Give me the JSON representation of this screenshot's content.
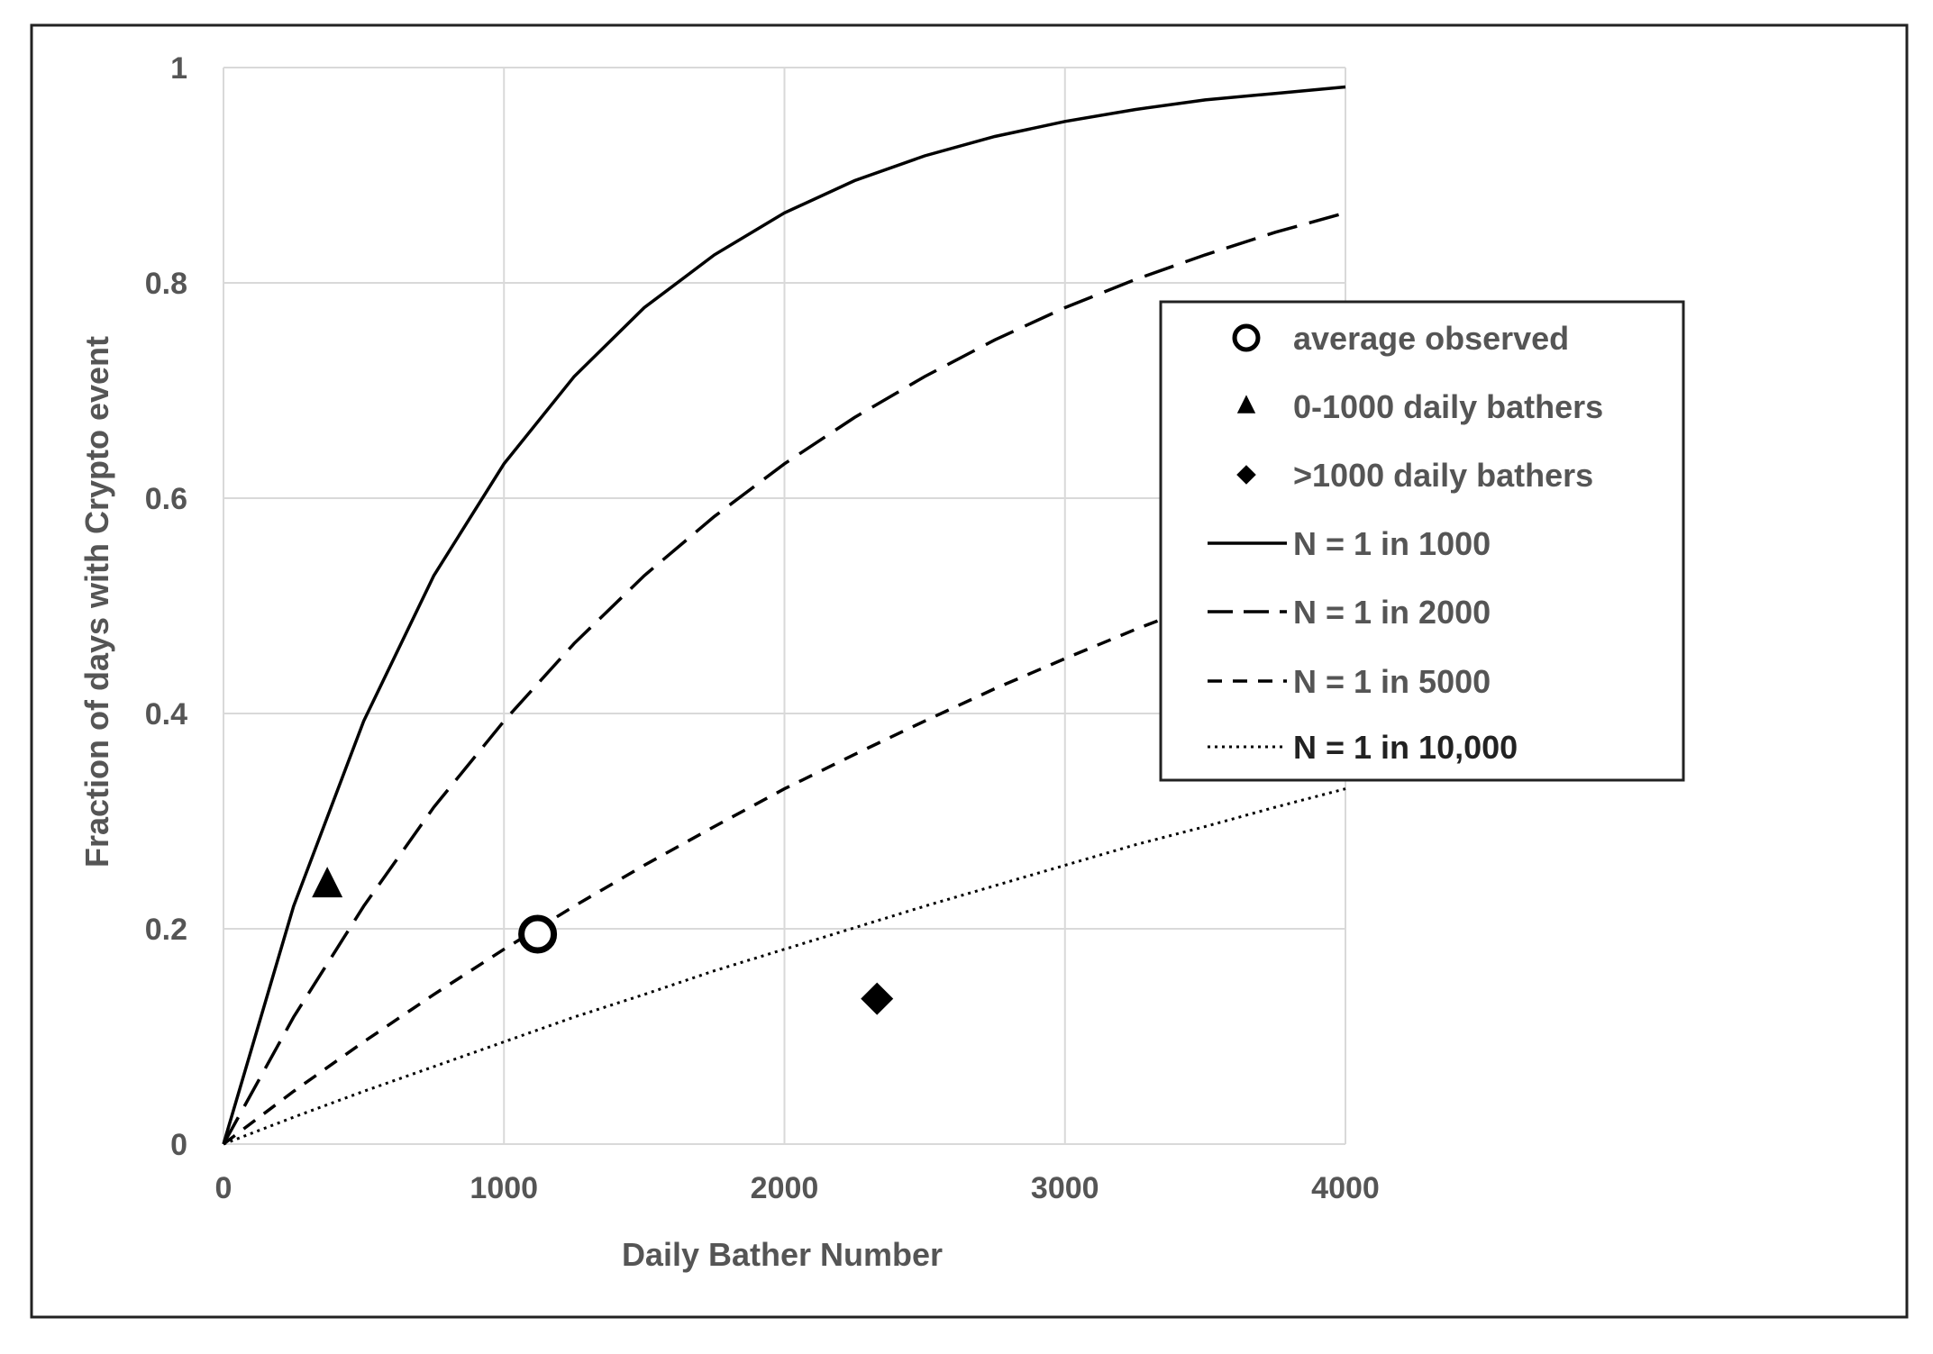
{
  "chart_data": {
    "type": "scatter",
    "title": "",
    "xlabel": "Daily Bather Number",
    "ylabel": "Fraction of days with Crypto event",
    "xlim": [
      0,
      4000
    ],
    "ylim": [
      0,
      1
    ],
    "x_ticks": [
      0,
      1000,
      2000,
      3000,
      4000
    ],
    "y_ticks": [
      0,
      0.2,
      0.4,
      0.6,
      0.8,
      1
    ],
    "x_tick_labels": [
      "0",
      "1000",
      "2000",
      "3000",
      "4000"
    ],
    "y_tick_labels": [
      "0",
      "0.2",
      "0.4",
      "0.6",
      "0.8",
      "1"
    ],
    "grid": true,
    "legend_position": "right",
    "legend": [
      {
        "label": "average observed",
        "marker": "open-circle"
      },
      {
        "label": "0-1000 daily bathers",
        "marker": "triangle"
      },
      {
        "label": ">1000 daily bathers",
        "marker": "diamond"
      },
      {
        "label": "N = 1 in 1000",
        "line": "solid"
      },
      {
        "label": "N = 1 in 2000",
        "line": "long-dash"
      },
      {
        "label": "N = 1 in 5000",
        "line": "short-dash"
      },
      {
        "label": "N = 1 in 10,000",
        "line": "dotted"
      }
    ],
    "points": [
      {
        "name": "average observed",
        "marker": "open-circle",
        "x": 1120,
        "y": 0.195
      },
      {
        "name": "0-1000 daily bathers",
        "marker": "triangle",
        "x": 370,
        "y": 0.24
      },
      {
        "name": ">1000 daily bathers",
        "marker": "diamond",
        "x": 2330,
        "y": 0.135
      }
    ],
    "series": [
      {
        "name": "N = 1 in 1000",
        "line": "solid",
        "x": [
          0,
          250,
          500,
          750,
          1000,
          1250,
          1500,
          1750,
          2000,
          2250,
          2500,
          2750,
          3000,
          3250,
          3500,
          3750,
          4000
        ],
        "y": [
          0,
          0.221,
          0.393,
          0.528,
          0.632,
          0.713,
          0.777,
          0.826,
          0.865,
          0.895,
          0.918,
          0.936,
          0.95,
          0.961,
          0.97,
          0.976,
          0.982
        ]
      },
      {
        "name": "N = 1 in 2000",
        "line": "long-dash",
        "x": [
          0,
          250,
          500,
          750,
          1000,
          1250,
          1500,
          1750,
          2000,
          2250,
          2500,
          2750,
          3000,
          3250,
          3500,
          3750,
          4000
        ],
        "y": [
          0,
          0.118,
          0.221,
          0.313,
          0.393,
          0.465,
          0.528,
          0.583,
          0.632,
          0.675,
          0.713,
          0.747,
          0.777,
          0.803,
          0.826,
          0.847,
          0.865
        ]
      },
      {
        "name": "N = 1 in 5000",
        "line": "short-dash",
        "x": [
          0,
          250,
          500,
          750,
          1000,
          1250,
          1500,
          1750,
          2000,
          2250,
          2500,
          2750,
          3000,
          3250,
          3500,
          3750,
          4000
        ],
        "y": [
          0,
          0.049,
          0.095,
          0.139,
          0.181,
          0.221,
          0.259,
          0.295,
          0.33,
          0.362,
          0.393,
          0.423,
          0.451,
          0.478,
          0.503,
          0.528,
          0.551
        ]
      },
      {
        "name": "N = 1 in 10,000",
        "line": "dotted",
        "x": [
          0,
          250,
          500,
          750,
          1000,
          1250,
          1500,
          1750,
          2000,
          2250,
          2500,
          2750,
          3000,
          3250,
          3500,
          3750,
          4000
        ],
        "y": [
          0,
          0.025,
          0.049,
          0.072,
          0.095,
          0.118,
          0.139,
          0.161,
          0.181,
          0.201,
          0.221,
          0.24,
          0.259,
          0.278,
          0.295,
          0.313,
          0.33
        ]
      }
    ],
    "colors": {
      "lines": "#000000",
      "grid": "#d9d9d9",
      "text": "#555555",
      "frame": "#222222"
    }
  }
}
